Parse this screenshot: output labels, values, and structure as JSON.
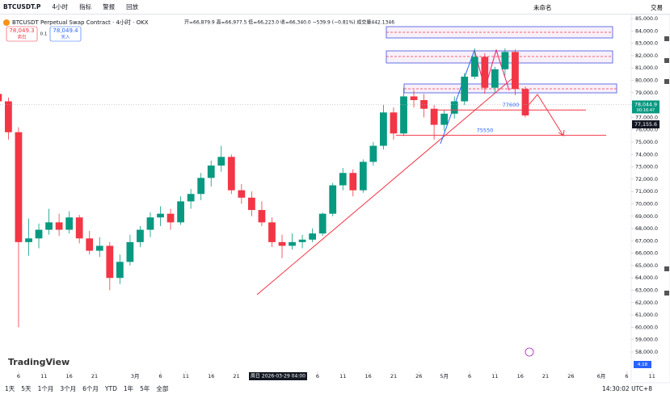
{
  "toolbar": {
    "symbol": "BTCUSDT.P",
    "interval": "4小时",
    "indicators": "指标",
    "alert": "警报",
    "replay": "回放",
    "layout_name": "未命名",
    "trade": "交易"
  },
  "legend": {
    "title": "BTCUSDT Perpetual Swap Contract · 4小时 · OKX",
    "ohlc": "开=66,879.9 高=66,977.5 低=66,223.0 收=66,340.0 −539.9 (−0.81%) 成交量442.1346"
  },
  "order_panel": {
    "sell_price": "78,049.3",
    "sell": "卖出",
    "quantity": "0.1",
    "buy_price": "78,049.4",
    "buy": "买入"
  },
  "chart_data": {
    "type": "candlestick",
    "x": [
      1,
      3,
      5,
      7,
      9,
      11,
      13,
      15,
      17,
      19,
      21,
      23,
      25,
      27,
      29,
      31,
      33,
      35,
      37,
      39,
      41,
      43,
      45,
      47,
      49,
      51,
      53,
      55,
      57,
      59,
      61,
      63,
      65,
      67,
      69,
      71,
      73,
      75,
      77,
      79,
      81,
      83,
      85,
      87,
      89,
      91,
      93,
      95,
      97,
      99,
      101,
      103,
      105
    ],
    "open": [
      78900,
      78300,
      75800,
      66900,
      67200,
      67900,
      68500,
      67900,
      68900,
      67200,
      66200,
      66600,
      64000,
      65300,
      66900,
      67900,
      68900,
      69200,
      68500,
      70200,
      70800,
      72100,
      73100,
      73800,
      71100,
      70500,
      69500,
      68500,
      66900,
      66600,
      66900,
      67100,
      67600,
      69200,
      71500,
      72500,
      71100,
      73400,
      74700,
      77400,
      75700,
      78700,
      78400,
      77700,
      76400,
      77300,
      78300,
      80300,
      81900,
      79400,
      80900,
      82300,
      79300
    ],
    "high": [
      79400,
      78600,
      76200,
      68800,
      68400,
      69600,
      69200,
      69400,
      69100,
      67800,
      67300,
      66900,
      65900,
      67500,
      68200,
      69300,
      69800,
      69600,
      70600,
      71200,
      72500,
      73500,
      74700,
      74000,
      71600,
      71000,
      70200,
      68900,
      67500,
      67600,
      67500,
      68000,
      69300,
      71700,
      72900,
      72800,
      73600,
      75000,
      78000,
      77800,
      79400,
      79200,
      78900,
      78000,
      77600,
      78700,
      80600,
      82600,
      82200,
      81100,
      82600,
      82500,
      79500
    ],
    "low": [
      77600,
      75200,
      60000,
      65800,
      66400,
      67500,
      67400,
      67600,
      66800,
      65900,
      65700,
      63000,
      63500,
      65000,
      66500,
      67300,
      68200,
      67900,
      68300,
      69600,
      70300,
      71400,
      72600,
      70800,
      70000,
      69000,
      68200,
      66500,
      65600,
      66300,
      66400,
      66900,
      67400,
      69000,
      71100,
      70600,
      70900,
      73100,
      74400,
      75200,
      75500,
      77800,
      77000,
      75200,
      75900,
      76900,
      78000,
      80100,
      78900,
      79000,
      80400,
      78800,
      77000
    ],
    "close": [
      78300,
      75800,
      66900,
      67200,
      67900,
      68500,
      67900,
      68900,
      67200,
      66200,
      66600,
      64000,
      65300,
      66900,
      67900,
      68900,
      69200,
      68500,
      70200,
      70800,
      72100,
      73100,
      73800,
      71100,
      70500,
      69500,
      68500,
      66900,
      66600,
      66900,
      67100,
      67600,
      69200,
      71500,
      72500,
      71100,
      73400,
      74700,
      77400,
      75700,
      78700,
      78400,
      77700,
      76400,
      77300,
      78300,
      80300,
      81900,
      79400,
      80900,
      82300,
      79300,
      77160
    ],
    "up_color": "#089981",
    "down_color": "#f23645",
    "xlim": [
      1.34,
      133.55
    ],
    "xticks": [
      {
        "value": 5,
        "label": "6"
      },
      {
        "value": 10,
        "label": "11"
      },
      {
        "value": 15,
        "label": "16"
      },
      {
        "value": 20,
        "label": "21"
      },
      {
        "value": 28,
        "label": "3月"
      },
      {
        "value": 33,
        "label": "6"
      },
      {
        "value": 38,
        "label": "11"
      },
      {
        "value": 43,
        "label": "16"
      },
      {
        "value": 48,
        "label": "21"
      },
      {
        "value": 64,
        "label": "6"
      },
      {
        "value": 69,
        "label": "11"
      },
      {
        "value": 74,
        "label": "16"
      },
      {
        "value": 79,
        "label": "21"
      },
      {
        "value": 84,
        "label": "26"
      },
      {
        "value": 89,
        "label": "5月"
      },
      {
        "value": 94,
        "label": "6"
      },
      {
        "value": 99,
        "label": "11"
      },
      {
        "value": 104,
        "label": "16"
      },
      {
        "value": 109,
        "label": "21"
      },
      {
        "value": 114,
        "label": "26"
      },
      {
        "value": 120,
        "label": "6月"
      },
      {
        "value": 125,
        "label": "6"
      },
      {
        "value": 130,
        "label": "11"
      }
    ],
    "ylim": [
      56560,
      85200
    ],
    "yticks": [
      {
        "value": 58000,
        "label": "58,000.0"
      },
      {
        "value": 59000,
        "label": "59,000.0"
      },
      {
        "value": 60000,
        "label": "60,000.0"
      },
      {
        "value": 61000,
        "label": "61,000.0"
      },
      {
        "value": 62000,
        "label": "62,000.0"
      },
      {
        "value": 63000,
        "label": "63,000.0"
      },
      {
        "value": 64000,
        "label": "64,000.0"
      },
      {
        "value": 65000,
        "label": "65,000.0"
      },
      {
        "value": 66000,
        "label": "66,000.0"
      },
      {
        "value": 67000,
        "label": "67,000.0"
      },
      {
        "value": 68000,
        "label": "68,000.0"
      },
      {
        "value": 69000,
        "label": "69,000.0"
      },
      {
        "value": 70000,
        "label": "70,000.0"
      },
      {
        "value": 71000,
        "label": "71,000.0"
      },
      {
        "value": 72000,
        "label": "72,000.0"
      },
      {
        "value": 73000,
        "label": "73,000.0"
      },
      {
        "value": 74000,
        "label": "74,000.0"
      },
      {
        "value": 75000,
        "label": "75,000.0"
      },
      {
        "value": 76000,
        "label": "76,000.0"
      },
      {
        "value": 77000,
        "label": "77,000.0"
      },
      {
        "value": 78000,
        "label": "78,000.0"
      },
      {
        "value": 79000,
        "label": "79,000.0"
      },
      {
        "value": 80000,
        "label": "80,000.0"
      },
      {
        "value": 81000,
        "label": "81,000.0"
      },
      {
        "value": 82000,
        "label": "82,000.0"
      },
      {
        "value": 83000,
        "label": "83,000.0"
      },
      {
        "value": 84000,
        "label": "84,000.0"
      },
      {
        "value": 85000,
        "label": "85,000.0"
      }
    ],
    "annotations": [
      77600,
      75550
    ],
    "live_price": {
      "value": 78044.9,
      "label": "78,044.9",
      "countdown": "00:16:47"
    },
    "last_price": {
      "value": 77155.6,
      "label": "77,155.6"
    },
    "crosshair_label": "周日 2026-03-29 04:00",
    "indicator_value": "4.18"
  },
  "watermark": "TradingView",
  "timeframes": [
    "1天",
    "5天",
    "1个月",
    "3个月",
    "6个月",
    "YTD",
    "1年",
    "5年",
    "全部"
  ],
  "clock": "14:30:02 UTC+8"
}
